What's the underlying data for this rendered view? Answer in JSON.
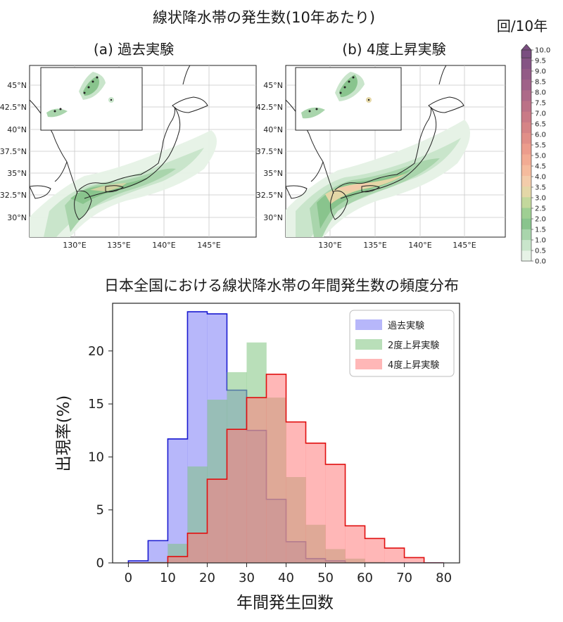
{
  "top": {
    "title": "線状降水帯の発生数(10年あたり)",
    "panels": [
      {
        "label": "(a) 過去実験"
      },
      {
        "label": "(b) 4度上昇実験"
      }
    ],
    "lat_ticks": [
      "45°N",
      "42.5°N",
      "40°N",
      "37.5°N",
      "35°N",
      "32.5°N",
      "30°N"
    ],
    "lon_ticks": [
      "130°E",
      "135°E",
      "140°E",
      "145°E"
    ],
    "colorbar": {
      "unit": "回/10年",
      "levels": [
        "0.0",
        "0.5",
        "1.0",
        "1.5",
        "2.0",
        "2.5",
        "3.0",
        "3.5",
        "4.0",
        "4.5",
        "5.0",
        "5.5",
        "6.0",
        "6.5",
        "7.0",
        "7.5",
        "8.0",
        "8.5",
        "9.0",
        "9.5",
        "10.0"
      ],
      "colors": [
        "#e6f2e6",
        "#c9e5cb",
        "#a9d5ac",
        "#89c48d",
        "#9fcf93",
        "#c3d89c",
        "#e4d7a7",
        "#f3ccaa",
        "#f5bb9d",
        "#f2ab93",
        "#ec9c8c",
        "#e18f88",
        "#d58486",
        "#c97a86",
        "#bb7287",
        "#ad6a88",
        "#9f6288",
        "#925b86",
        "#855484",
        "#7a4e80"
      ]
    }
  },
  "chart_data": {
    "type": "histogram",
    "title": "日本全国における線状降水帯の年間発生数の頻度分布",
    "xlabel": "年間発生回数",
    "ylabel": "出現率(%)",
    "xlim": [
      -4,
      84
    ],
    "ylim": [
      0,
      24.5
    ],
    "xticks": [
      0,
      10,
      20,
      30,
      40,
      50,
      60,
      70,
      80
    ],
    "yticks": [
      0,
      5,
      10,
      15,
      20
    ],
    "bin_edges": [
      0,
      5,
      10,
      15,
      20,
      25,
      30,
      35,
      40,
      45,
      50,
      55,
      60,
      65,
      70,
      75,
      80
    ],
    "legend_position": "top-right",
    "series": [
      {
        "name": "過去実験",
        "fill": "#7b7bf5",
        "edge": "#1a1ad0",
        "values": [
          0.2,
          2.1,
          11.7,
          23.7,
          23.5,
          16.3,
          12.5,
          6.0,
          2.0,
          0.4,
          0.2,
          0.0,
          0.0,
          0.0,
          0.0,
          0.0
        ]
      },
      {
        "name": "2度上昇実験",
        "fill": "#7fc47f",
        "edge": null,
        "values": [
          0.0,
          0.1,
          1.8,
          9.1,
          15.4,
          18.0,
          20.8,
          15.6,
          8.1,
          3.6,
          1.3,
          0.4,
          0.1,
          0.0,
          0.0,
          0.0
        ]
      },
      {
        "name": "4度上昇実験",
        "fill": "#ff7b7b",
        "edge": "#e01010",
        "values": [
          0.0,
          0.0,
          0.6,
          2.8,
          7.9,
          12.6,
          15.6,
          17.8,
          13.3,
          11.3,
          9.3,
          3.5,
          2.3,
          1.4,
          0.5,
          0.0
        ]
      }
    ]
  }
}
